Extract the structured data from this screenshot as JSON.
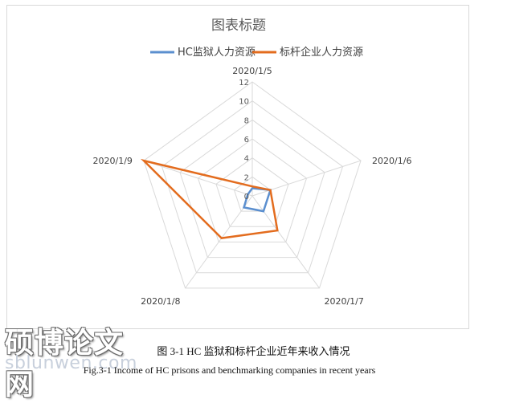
{
  "chart_data": {
    "type": "radar",
    "title": "图表标题",
    "categories": [
      "2020/1/5",
      "2020/1/6",
      "2020/1/7",
      "2020/1/8",
      "2020/1/9"
    ],
    "rlim": [
      0,
      12
    ],
    "ticks": [
      "0",
      "2",
      "4",
      "6",
      "8",
      "10",
      "12"
    ],
    "grid": true,
    "legend_position": "top",
    "series": [
      {
        "name": "HC监狱人力资源",
        "color": "#5b8fcf",
        "values": [
          0.8,
          2,
          2,
          1.5,
          0.5
        ]
      },
      {
        "name": "标杆企业人力资源",
        "color": "#e36c1e",
        "values": [
          1,
          2,
          4.5,
          5.5,
          12
        ]
      }
    ]
  },
  "captions": {
    "cn": "图 3-1 HC 监狱和标杆企业近年来收入情况",
    "en": "Fig.3-1 Income of HC prisons and benchmarking companies in recent years"
  },
  "watermark": {
    "text_cn": "硕博论文网",
    "url": "sblunwen.com"
  }
}
